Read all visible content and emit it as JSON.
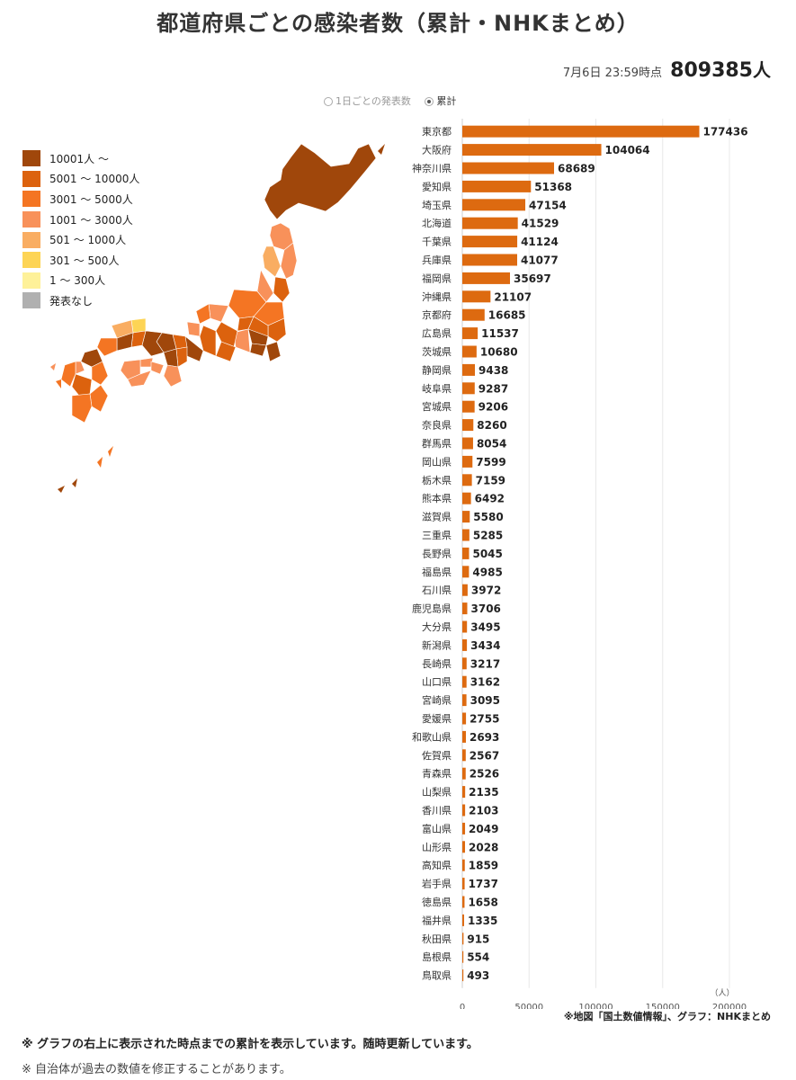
{
  "title": "都道府県ごとの感染者数（累計・NHKまとめ）",
  "as_of": "7月6日 23:59時点",
  "total": "809385",
  "total_unit": "人",
  "toggle": {
    "options": [
      "1日ごとの発表数",
      "累計"
    ],
    "selected": "累計"
  },
  "legend": [
    {
      "label": "10001人 ～",
      "color": "#a0470b"
    },
    {
      "label": "5001 ～ 10000人",
      "color": "#dc620e"
    },
    {
      "label": "3001 ～ 5000人",
      "color": "#f47523"
    },
    {
      "label": "1001 ～ 3000人",
      "color": "#f8915a"
    },
    {
      "label": "501 ～ 1000人",
      "color": "#f9ad62"
    },
    {
      "label": "301 ～ 500人",
      "color": "#fdd455"
    },
    {
      "label": "1 ～ 300人",
      "color": "#fef199"
    },
    {
      "label": "発表なし",
      "color": "#b0b0b0"
    }
  ],
  "source_note": "※地図「国土数値情報」、グラフ：NHKまとめ",
  "note1": "※ グラフの右上に表示された時点までの累計を表示しています。随時更新しています。",
  "note2": "※ 自治体が過去の数値を修正することがあります。",
  "chart_data": {
    "type": "bar",
    "orientation": "horizontal",
    "bar_color": "#dd6a10",
    "categories": [
      "東京都",
      "大阪府",
      "神奈川県",
      "愛知県",
      "埼玉県",
      "北海道",
      "千葉県",
      "兵庫県",
      "福岡県",
      "沖縄県",
      "京都府",
      "広島県",
      "茨城県",
      "静岡県",
      "岐阜県",
      "宮城県",
      "奈良県",
      "群馬県",
      "岡山県",
      "栃木県",
      "熊本県",
      "滋賀県",
      "三重県",
      "長野県",
      "福島県",
      "石川県",
      "鹿児島県",
      "大分県",
      "新潟県",
      "長崎県",
      "山口県",
      "宮崎県",
      "愛媛県",
      "和歌山県",
      "佐賀県",
      "青森県",
      "山梨県",
      "香川県",
      "富山県",
      "山形県",
      "高知県",
      "岩手県",
      "徳島県",
      "福井県",
      "秋田県",
      "島根県",
      "鳥取県"
    ],
    "values": [
      177436,
      104064,
      68689,
      51368,
      47154,
      41529,
      41124,
      41077,
      35697,
      21107,
      16685,
      11537,
      10680,
      9438,
      9287,
      9206,
      8260,
      8054,
      7599,
      7159,
      6492,
      5580,
      5285,
      5045,
      4985,
      3972,
      3706,
      3495,
      3434,
      3217,
      3162,
      3095,
      2755,
      2693,
      2567,
      2526,
      2135,
      2103,
      2049,
      2028,
      1859,
      1737,
      1658,
      1335,
      915,
      554,
      493
    ],
    "x_ticks": [
      "0",
      "50000",
      "100000",
      "150000",
      "200000"
    ],
    "xlim": [
      0,
      200000
    ],
    "x_unit": "（人）",
    "grid": true
  }
}
